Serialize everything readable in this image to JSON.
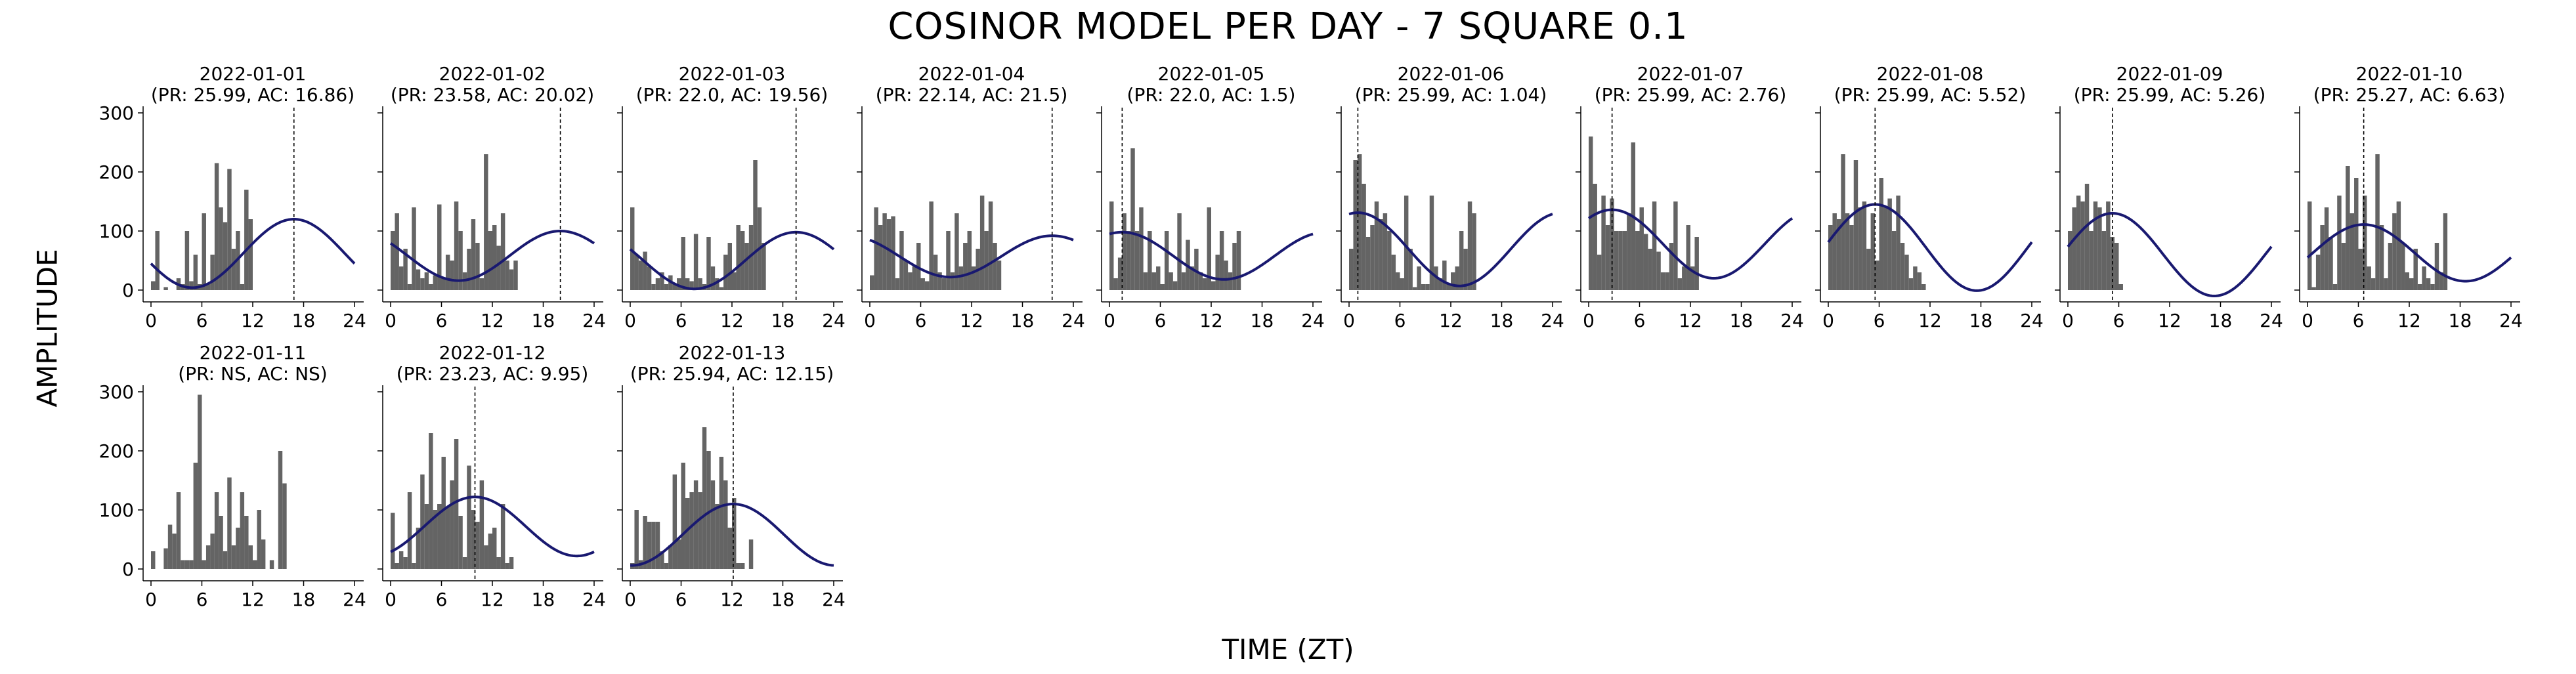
{
  "title": "COSINOR MODEL PER DAY - 7 SQUARE 0.1",
  "x_axis_label": "TIME (ZT)",
  "y_axis_label": "AMPLITUDE",
  "chart_data": {
    "type": "bar",
    "shared_axes": {
      "xlim": [
        0,
        24
      ],
      "ylim": [
        0,
        300
      ],
      "xticks": [
        0,
        6,
        12,
        18,
        24
      ],
      "yticks": [
        0,
        100,
        200,
        300
      ]
    },
    "colors": {
      "bars": "#646464",
      "fit_line": "#191970",
      "acrophase_line": "#000000"
    },
    "panels": [
      {
        "date": "2022-01-01",
        "subtitle": "(PR: 25.99, AC: 16.86)",
        "acrophase": 16.86,
        "mesor": 62,
        "amplitude": 58,
        "bars": [
          15,
          100,
          0,
          5,
          0,
          0,
          20,
          10,
          100,
          15,
          60,
          10,
          130,
          10,
          60,
          215,
          140,
          115,
          205,
          70,
          100,
          10,
          170,
          120,
          0,
          0,
          0,
          0,
          0,
          0,
          0,
          0,
          0,
          0,
          0,
          0,
          0,
          0,
          0,
          0,
          0,
          0,
          0,
          0,
          0,
          0,
          0,
          0
        ]
      },
      {
        "date": "2022-01-02",
        "subtitle": "(PR: 23.58, AC: 20.02)",
        "acrophase": 20.02,
        "mesor": 58,
        "amplitude": 42,
        "bars": [
          100,
          130,
          40,
          70,
          10,
          140,
          35,
          20,
          30,
          10,
          25,
          145,
          20,
          60,
          50,
          150,
          100,
          30,
          70,
          120,
          80,
          20,
          230,
          100,
          110,
          75,
          130,
          50,
          35,
          50,
          0,
          0,
          0,
          0,
          0,
          0,
          0,
          0,
          0,
          0,
          0,
          0,
          0,
          0,
          0,
          0,
          0,
          0
        ]
      },
      {
        "date": "2022-01-03",
        "subtitle": "(PR: 22.0, AC: 19.56)",
        "acrophase": 19.56,
        "mesor": 50,
        "amplitude": 48,
        "bars": [
          140,
          60,
          50,
          65,
          40,
          10,
          20,
          30,
          10,
          25,
          10,
          20,
          90,
          20,
          15,
          95,
          20,
          10,
          90,
          40,
          20,
          5,
          60,
          80,
          30,
          110,
          100,
          80,
          110,
          220,
          140,
          80,
          0,
          0,
          0,
          0,
          0,
          0,
          0,
          0,
          0,
          0,
          0,
          0,
          0,
          0,
          0,
          0
        ]
      },
      {
        "date": "2022-01-04",
        "subtitle": "(PR: 22.14, AC: 21.5)",
        "acrophase": 21.5,
        "mesor": 57,
        "amplitude": 35,
        "bars": [
          25,
          140,
          110,
          130,
          120,
          125,
          20,
          100,
          50,
          30,
          40,
          80,
          20,
          15,
          150,
          60,
          30,
          20,
          100,
          30,
          130,
          40,
          80,
          100,
          40,
          70,
          160,
          100,
          150,
          80,
          50,
          0,
          0,
          0,
          0,
          0,
          0,
          0,
          0,
          0,
          0,
          0,
          0,
          0,
          0,
          0,
          0,
          0
        ]
      },
      {
        "date": "2022-01-05",
        "subtitle": "(PR: 22.0, AC: 1.5)",
        "acrophase": 1.5,
        "mesor": 58,
        "amplitude": 40,
        "bars": [
          150,
          20,
          55,
          130,
          100,
          240,
          100,
          140,
          30,
          100,
          30,
          40,
          10,
          100,
          30,
          15,
          130,
          30,
          85,
          40,
          70,
          30,
          20,
          140,
          15,
          60,
          100,
          50,
          30,
          80,
          100,
          0,
          0,
          0,
          0,
          0,
          0,
          0,
          0,
          0,
          0,
          0,
          0,
          0,
          0,
          0,
          0,
          0
        ]
      },
      {
        "date": "2022-01-06",
        "subtitle": "(PR: 25.99, AC: 1.04)",
        "acrophase": 1.04,
        "mesor": 69,
        "amplitude": 62,
        "bars": [
          70,
          220,
          230,
          180,
          90,
          110,
          150,
          120,
          130,
          100,
          60,
          30,
          20,
          160,
          70,
          5,
          40,
          10,
          10,
          160,
          40,
          20,
          50,
          10,
          30,
          40,
          100,
          70,
          150,
          130,
          0,
          0,
          0,
          0,
          0,
          0,
          0,
          0,
          0,
          0,
          0,
          0,
          0,
          0,
          0,
          0,
          0,
          0
        ]
      },
      {
        "date": "2022-01-07",
        "subtitle": "(PR: 25.99, AC: 2.76)",
        "acrophase": 2.76,
        "mesor": 78,
        "amplitude": 58,
        "bars": [
          260,
          180,
          60,
          160,
          110,
          155,
          100,
          100,
          100,
          130,
          250,
          100,
          140,
          95,
          70,
          150,
          65,
          30,
          30,
          80,
          150,
          20,
          40,
          110,
          40,
          90,
          0,
          0,
          0,
          0,
          0,
          0,
          0,
          0,
          0,
          0,
          0,
          0,
          0,
          0,
          0,
          0,
          0,
          0,
          0,
          0,
          0,
          0
        ]
      },
      {
        "date": "2022-01-08",
        "subtitle": "(PR: 25.99, AC: 5.52)",
        "acrophase": 5.52,
        "mesor": 72,
        "amplitude": 73,
        "bars": [
          110,
          130,
          120,
          230,
          130,
          110,
          220,
          140,
          150,
          70,
          130,
          50,
          190,
          140,
          155,
          100,
          160,
          80,
          60,
          20,
          40,
          30,
          10,
          0,
          0,
          0,
          0,
          0,
          0,
          0,
          0,
          0,
          0,
          0,
          0,
          0,
          0,
          0,
          0,
          0,
          0,
          0,
          0,
          0,
          0,
          0,
          0,
          0
        ]
      },
      {
        "date": "2022-01-09",
        "subtitle": "(PR: 25.99, AC: 5.26)",
        "acrophase": 5.26,
        "mesor": 60,
        "amplitude": 70,
        "bars": [
          100,
          140,
          160,
          150,
          180,
          100,
          150,
          140,
          100,
          150,
          90,
          80,
          10,
          0,
          0,
          0,
          0,
          0,
          0,
          0,
          0,
          0,
          0,
          0,
          0,
          0,
          0,
          0,
          0,
          0,
          0,
          0,
          0,
          0,
          0,
          0,
          0,
          0,
          0,
          0,
          0,
          0,
          0,
          0,
          0,
          0,
          0,
          0
        ]
      },
      {
        "date": "2022-01-10",
        "subtitle": "(PR: 25.27, AC: 6.63)",
        "acrophase": 6.63,
        "mesor": 63,
        "amplitude": 48,
        "bars": [
          150,
          5,
          60,
          110,
          140,
          90,
          10,
          160,
          80,
          210,
          130,
          190,
          70,
          160,
          40,
          20,
          230,
          110,
          20,
          80,
          130,
          150,
          80,
          30,
          20,
          70,
          10,
          40,
          20,
          10,
          80,
          30,
          130,
          0,
          0,
          0,
          0,
          0,
          0,
          0,
          0,
          0,
          0,
          0,
          0,
          0,
          0,
          0
        ]
      },
      {
        "date": "2022-01-11",
        "subtitle": "(PR: NS, AC: NS)",
        "acrophase": null,
        "mesor": null,
        "amplitude": null,
        "bars": [
          30,
          0,
          0,
          35,
          75,
          60,
          130,
          15,
          15,
          15,
          180,
          295,
          15,
          40,
          60,
          130,
          90,
          30,
          155,
          40,
          70,
          130,
          90,
          40,
          15,
          100,
          50,
          0,
          15,
          0,
          200,
          145,
          0,
          0,
          0,
          0,
          0,
          0,
          0,
          0,
          0,
          0,
          0,
          0,
          0,
          0,
          0,
          0
        ]
      },
      {
        "date": "2022-01-12",
        "subtitle": "(PR: 23.23, AC: 9.95)",
        "acrophase": 9.95,
        "mesor": 72,
        "amplitude": 50,
        "bars": [
          95,
          10,
          30,
          20,
          130,
          10,
          70,
          160,
          110,
          230,
          100,
          110,
          190,
          105,
          150,
          220,
          90,
          20,
          175,
          100,
          80,
          150,
          40,
          60,
          70,
          20,
          110,
          10,
          20,
          0,
          0,
          0,
          0,
          0,
          0,
          0,
          0,
          0,
          0,
          0,
          0,
          0,
          0,
          0,
          0,
          0,
          0,
          0
        ]
      },
      {
        "date": "2022-01-13",
        "subtitle": "(PR: 25.94, AC: 12.15)",
        "acrophase": 12.15,
        "mesor": 58,
        "amplitude": 52,
        "bars": [
          10,
          100,
          15,
          90,
          80,
          80,
          80,
          30,
          10,
          40,
          160,
          50,
          180,
          120,
          130,
          150,
          130,
          240,
          200,
          150,
          110,
          190,
          150,
          70,
          120,
          10,
          10,
          0,
          50,
          0,
          0,
          0,
          0,
          0,
          0,
          0,
          0,
          0,
          0,
          0,
          0,
          0,
          0,
          0,
          0,
          0,
          0,
          0
        ]
      }
    ]
  }
}
